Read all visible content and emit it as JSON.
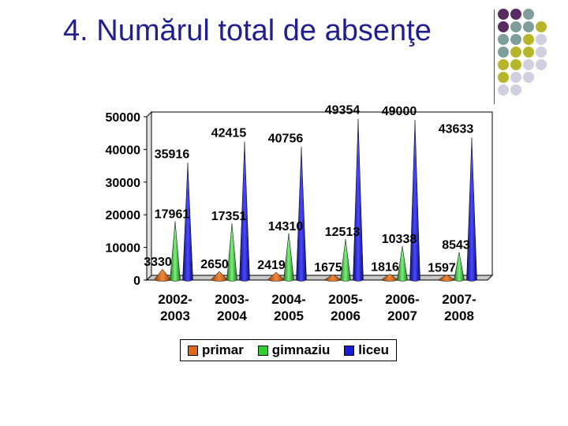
{
  "slide": {
    "title": "4. Numărul total de absenţe"
  },
  "decoration": {
    "dot_rows": [
      [
        "#5a2b63",
        "#5a2b63",
        "#7f9e9b"
      ],
      [
        "#5a2b63",
        "#7f9e9b",
        "#7f9e9b",
        "#b7b62a"
      ],
      [
        "#7f9e9b",
        "#7f9e9b",
        "#b7b62a",
        "#cfcfe0"
      ],
      [
        "#7f9e9b",
        "#b7b62a",
        "#b7b62a",
        "#cfcfe0"
      ],
      [
        "#b7b62a",
        "#b7b62a",
        "#cfcfe0",
        "#cfcfe0"
      ],
      [
        "#b7b62a",
        "#cfcfe0",
        "#cfcfe0"
      ],
      [
        "#cfcfe0",
        "#cfcfe0"
      ]
    ]
  },
  "chart_data": {
    "type": "bar",
    "title": "",
    "xlabel": "",
    "ylabel": "",
    "ylim": [
      0,
      50000
    ],
    "yticks": [
      0,
      10000,
      20000,
      30000,
      40000,
      50000
    ],
    "ytick_labels": [
      "0",
      "10000",
      "20000",
      "30000",
      "40000",
      "50000"
    ],
    "grid": false,
    "legend_position": "bottom",
    "categories": [
      "2002-\n2003",
      "2003-\n2004",
      "2004-\n2005",
      "2005-\n2006",
      "2006-\n2007",
      "2007-\n2008"
    ],
    "series": [
      {
        "name": "primar",
        "color": "#e06a1a",
        "values": [
          3330,
          2650,
          2419,
          1675,
          1816,
          1597
        ],
        "labels": [
          "3330",
          "2650",
          "2419",
          "1675",
          "1816",
          "1597"
        ]
      },
      {
        "name": "gimnaziu",
        "color": "#33cc33",
        "values": [
          17961,
          17351,
          14310,
          12513,
          10338,
          8543
        ],
        "labels": [
          "17961",
          "17351",
          "14310",
          "12513",
          "10338",
          "8543"
        ]
      },
      {
        "name": "liceu",
        "color": "#1a1adb",
        "values": [
          35916,
          42415,
          40756,
          49354,
          49000,
          43633
        ],
        "labels": [
          "35916",
          "42415",
          "40756",
          "49354",
          "49000",
          "43633"
        ]
      }
    ]
  }
}
